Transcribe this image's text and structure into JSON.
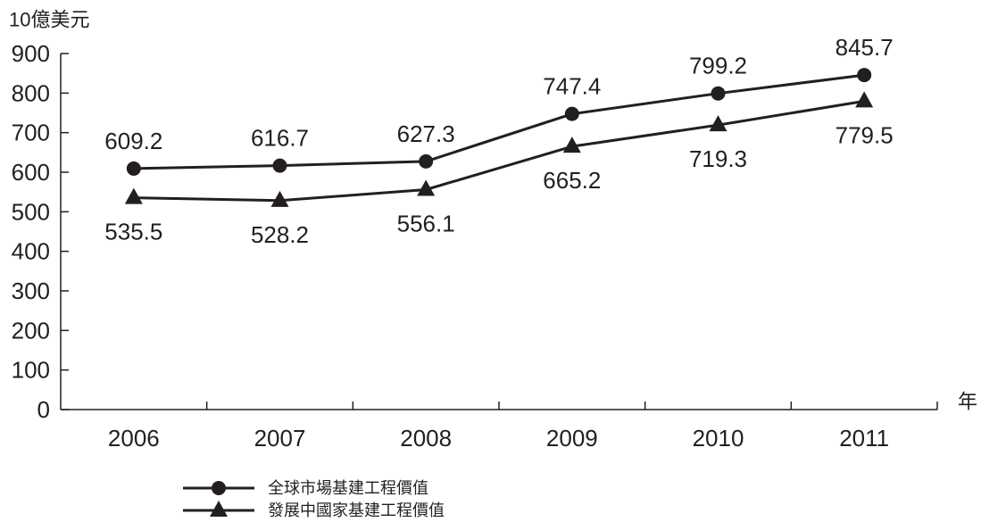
{
  "chart_data": {
    "type": "line",
    "ylabel": "10億美元",
    "xlabel": "年",
    "categories": [
      "2006",
      "2007",
      "2008",
      "2009",
      "2010",
      "2011"
    ],
    "series": [
      {
        "name": "全球市場基建工程價值",
        "marker": "circle",
        "values": [
          609.2,
          616.7,
          627.3,
          747.4,
          799.2,
          845.7
        ]
      },
      {
        "name": "發展中國家基建工程價值",
        "marker": "triangle",
        "values": [
          535.5,
          528.2,
          556.1,
          665.2,
          719.3,
          779.5
        ]
      }
    ],
    "ylim": [
      0,
      900
    ],
    "yticks": [
      0,
      100,
      200,
      300,
      400,
      500,
      600,
      700,
      800,
      900
    ],
    "grid": false,
    "data_labels": true,
    "legend": "bottom-left",
    "color": "#231f20"
  }
}
